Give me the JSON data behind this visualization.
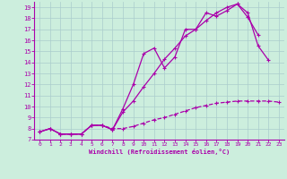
{
  "xlabel": "Windchill (Refroidissement éolien,°C)",
  "bg_color": "#cceedd",
  "line_color": "#aa00aa",
  "xlim": [
    -0.5,
    23.5
  ],
  "ylim": [
    7,
    19.5
  ],
  "xticks": [
    0,
    1,
    2,
    3,
    4,
    5,
    6,
    7,
    8,
    9,
    10,
    11,
    12,
    13,
    14,
    15,
    16,
    17,
    18,
    19,
    20,
    21,
    22,
    23
  ],
  "yticks": [
    7,
    8,
    9,
    10,
    11,
    12,
    13,
    14,
    15,
    16,
    17,
    18,
    19
  ],
  "line1_x": [
    0,
    1,
    2,
    3,
    4,
    5,
    6,
    7,
    8,
    9,
    10,
    11,
    12,
    13,
    14,
    15,
    16,
    17,
    18,
    19,
    20,
    21,
    22,
    23
  ],
  "line1_y": [
    7.7,
    8.0,
    7.5,
    7.5,
    7.5,
    8.3,
    8.3,
    8.0,
    8.0,
    8.2,
    8.5,
    8.8,
    9.0,
    9.3,
    9.6,
    9.9,
    10.1,
    10.3,
    10.4,
    10.5,
    10.5,
    10.5,
    10.5,
    10.4
  ],
  "line2_x": [
    0,
    1,
    2,
    3,
    4,
    5,
    6,
    7,
    8,
    9,
    10,
    11,
    12,
    13,
    14,
    15,
    16,
    17,
    18,
    19,
    20,
    21,
    22
  ],
  "line2_y": [
    7.7,
    8.0,
    7.5,
    7.5,
    7.5,
    8.3,
    8.3,
    7.9,
    9.8,
    12.0,
    14.8,
    15.3,
    13.5,
    14.5,
    17.0,
    17.0,
    18.5,
    18.2,
    18.7,
    19.3,
    18.5,
    15.5,
    14.2
  ],
  "line3_x": [
    0,
    1,
    2,
    3,
    4,
    5,
    6,
    7,
    8,
    9,
    10,
    11,
    12,
    13,
    14,
    15,
    16,
    17,
    18,
    19,
    20,
    21
  ],
  "line3_y": [
    7.7,
    8.0,
    7.5,
    7.5,
    7.5,
    8.3,
    8.3,
    7.9,
    9.5,
    10.5,
    11.8,
    13.0,
    14.3,
    15.3,
    16.4,
    17.0,
    17.8,
    18.5,
    19.0,
    19.3,
    18.1,
    16.5
  ],
  "grid_color": "#aacccc",
  "marker": "+",
  "line1_style": "solid",
  "line2_style": "solid",
  "line3_style": "solid"
}
